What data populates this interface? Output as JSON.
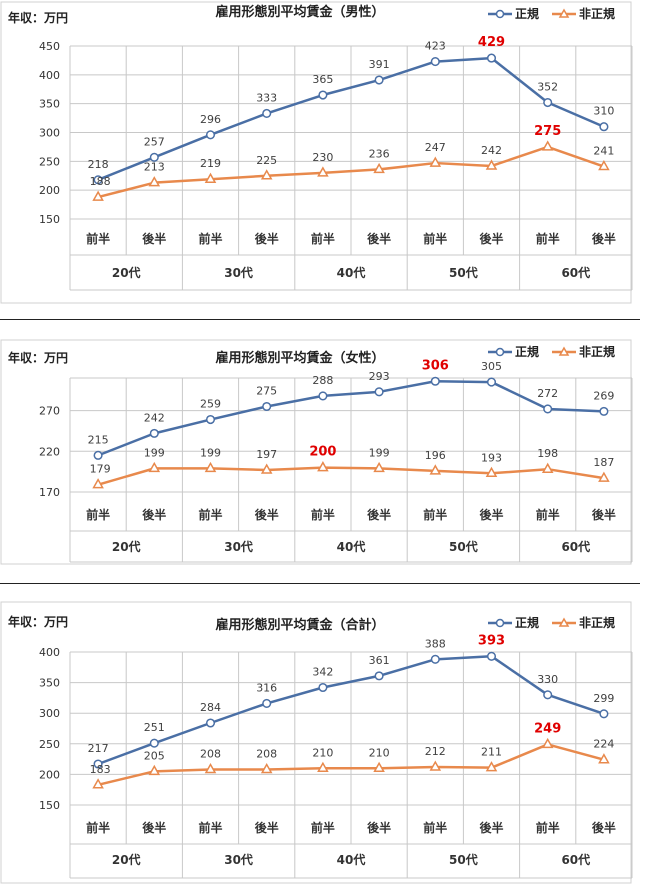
{
  "chart_data": [
    {
      "type": "line",
      "title": "雇用形態別平均賃金（男性）",
      "ylabel": "年収：万円",
      "ylim": [
        150,
        450
      ],
      "yticks": [
        150,
        200,
        250,
        300,
        350,
        400,
        450
      ],
      "categories": [
        "前半",
        "後半",
        "前半",
        "後半",
        "前半",
        "後半",
        "前半",
        "後半",
        "前半",
        "後半"
      ],
      "groups": [
        "20代",
        "30代",
        "40代",
        "50代",
        "60代"
      ],
      "grid": true,
      "legend": "top-right",
      "series": [
        {
          "name": "正規",
          "color": "#4a6fa5",
          "marker": "circle",
          "values": [
            218,
            257,
            296,
            333,
            365,
            391,
            423,
            429,
            352,
            310
          ],
          "highlight_index": 7
        },
        {
          "name": "非正規",
          "color": "#e8894c",
          "marker": "triangle",
          "values": [
            188,
            213,
            219,
            225,
            230,
            236,
            247,
            242,
            275,
            241
          ],
          "highlight_index": 8
        }
      ]
    },
    {
      "type": "line",
      "title": "雇用形態別平均賃金（女性）",
      "ylabel": "年収：万円",
      "ylim": [
        170,
        310
      ],
      "yticks": [
        170,
        220,
        270
      ],
      "categories": [
        "前半",
        "後半",
        "前半",
        "後半",
        "前半",
        "後半",
        "前半",
        "後半",
        "前半",
        "後半"
      ],
      "groups": [
        "20代",
        "30代",
        "40代",
        "50代",
        "60代"
      ],
      "grid": true,
      "legend": "top-right",
      "series": [
        {
          "name": "正規",
          "color": "#4a6fa5",
          "marker": "circle",
          "values": [
            215,
            242,
            259,
            275,
            288,
            293,
            306,
            305,
            272,
            269
          ],
          "highlight_index": 6
        },
        {
          "name": "非正規",
          "color": "#e8894c",
          "marker": "triangle",
          "values": [
            179,
            199,
            199,
            197,
            200,
            199,
            196,
            193,
            198,
            187
          ],
          "highlight_index": 4
        }
      ]
    },
    {
      "type": "line",
      "title": "雇用形態別平均賃金（合計）",
      "ylabel": "年収：万円",
      "ylim": [
        150,
        400
      ],
      "yticks": [
        150,
        200,
        250,
        300,
        350,
        400
      ],
      "categories": [
        "前半",
        "後半",
        "前半",
        "後半",
        "前半",
        "後半",
        "前半",
        "後半",
        "前半",
        "後半"
      ],
      "groups": [
        "20代",
        "30代",
        "40代",
        "50代",
        "60代"
      ],
      "grid": true,
      "legend": "top-right",
      "series": [
        {
          "name": "正規",
          "color": "#4a6fa5",
          "marker": "circle",
          "values": [
            217,
            251,
            284,
            316,
            342,
            361,
            388,
            393,
            330,
            299
          ],
          "highlight_index": 7
        },
        {
          "name": "非正規",
          "color": "#e8894c",
          "marker": "triangle",
          "values": [
            183,
            205,
            208,
            208,
            210,
            210,
            212,
            211,
            249,
            224
          ],
          "highlight_index": 8
        }
      ]
    }
  ]
}
